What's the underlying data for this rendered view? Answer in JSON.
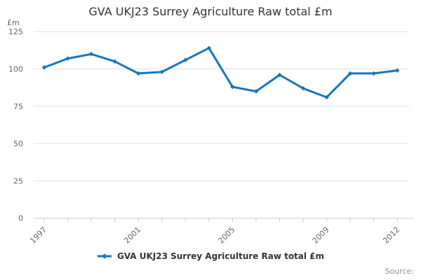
{
  "chart_data": {
    "type": "line",
    "title": "GVA UKJ23 Surrey Agriculture Raw total £m",
    "unit_label": "£m",
    "xlabel": "",
    "ylabel": "£m",
    "categories": [
      "1997",
      "1998",
      "1999",
      "2000",
      "2001",
      "2002",
      "2003",
      "2004",
      "2005",
      "2006",
      "2007",
      "2008",
      "2009",
      "2010",
      "2011",
      "2012"
    ],
    "series": [
      {
        "name": "GVA UKJ23 Surrey Agriculture Raw total £m",
        "values": [
          101,
          107,
          110,
          105,
          97,
          98,
          106,
          114,
          88,
          85,
          96,
          87,
          81,
          97,
          97,
          99
        ]
      }
    ],
    "ylim": [
      0,
      125
    ],
    "y_ticks": [
      0,
      25,
      50,
      75,
      100,
      125
    ],
    "x_labeled_indices": [
      0,
      4,
      8,
      12,
      15
    ],
    "grid": true,
    "legend_position": "bottom"
  },
  "colors": {
    "line": "#1577bd",
    "grid": "#e0e0e0",
    "axis": "#c0d0e0",
    "tick_label": "#666666",
    "title": "#333333",
    "legend_text": "#333333",
    "source_text": "#8f8f8f"
  },
  "footer": {
    "source_label": "Source:"
  }
}
